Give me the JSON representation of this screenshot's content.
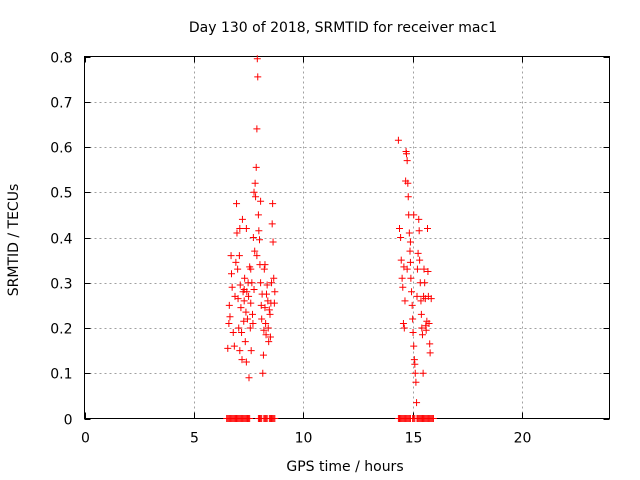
{
  "chart_data": {
    "type": "scatter",
    "title": "Day 130 of 2018, SRMTID for receiver mac1",
    "xlabel": "GPS time / hours",
    "ylabel": "SRMTID / TECUs",
    "xlim": [
      0,
      24
    ],
    "ylim": [
      0,
      0.8
    ],
    "xticks": [
      "0",
      "5",
      "10",
      "15",
      "20"
    ],
    "yticks": [
      "0",
      "0.1",
      "0.2",
      "0.3",
      "0.4",
      "0.5",
      "0.6",
      "0.7",
      "0.8"
    ],
    "grid": true,
    "marker": "+",
    "color": "#ff0000",
    "series": [
      {
        "name": "SRMTID",
        "points": [
          [
            6.55,
            0.155
          ],
          [
            6.6,
            0.21
          ],
          [
            6.62,
            0.25
          ],
          [
            6.65,
            0.225
          ],
          [
            6.7,
            0.36
          ],
          [
            6.72,
            0.32
          ],
          [
            6.75,
            0.29
          ],
          [
            6.8,
            0.19
          ],
          [
            6.85,
            0.16
          ],
          [
            6.88,
            0.27
          ],
          [
            6.92,
            0.345
          ],
          [
            6.95,
            0.475
          ],
          [
            6.97,
            0.41
          ],
          [
            7.0,
            0.33
          ],
          [
            7.02,
            0.265
          ],
          [
            7.05,
            0.2
          ],
          [
            7.08,
            0.36
          ],
          [
            7.1,
            0.15
          ],
          [
            7.12,
            0.295
          ],
          [
            7.15,
            0.245
          ],
          [
            7.18,
            0.19
          ],
          [
            7.2,
            0.13
          ],
          [
            7.22,
            0.44
          ],
          [
            7.25,
            0.28
          ],
          [
            7.28,
            0.215
          ],
          [
            7.3,
            0.26
          ],
          [
            7.32,
            0.31
          ],
          [
            7.35,
            0.17
          ],
          [
            7.38,
            0.235
          ],
          [
            7.4,
            0.125
          ],
          [
            7.42,
            0.28
          ],
          [
            7.45,
            0.22
          ],
          [
            7.48,
            0.3
          ],
          [
            7.5,
            0.27
          ],
          [
            7.52,
            0.09
          ],
          [
            7.55,
            0.335
          ],
          [
            7.58,
            0.2
          ],
          [
            7.6,
            0.255
          ],
          [
            7.62,
            0.15
          ],
          [
            7.65,
            0.3
          ],
          [
            7.68,
            0.23
          ],
          [
            7.7,
            0.21
          ],
          [
            7.72,
            0.4
          ],
          [
            7.75,
            0.285
          ],
          [
            7.78,
            0.37
          ],
          [
            7.8,
            0.52
          ],
          [
            7.82,
            0.49
          ],
          [
            7.85,
            0.555
          ],
          [
            7.88,
            0.64
          ],
          [
            7.9,
            0.795
          ],
          [
            7.92,
            0.755
          ],
          [
            7.95,
            0.45
          ],
          [
            7.97,
            0.415
          ],
          [
            8.0,
            0.395
          ],
          [
            8.02,
            0.34
          ],
          [
            8.05,
            0.3
          ],
          [
            8.08,
            0.25
          ],
          [
            8.1,
            0.22
          ],
          [
            8.12,
            0.275
          ],
          [
            8.15,
            0.1
          ],
          [
            8.18,
            0.14
          ],
          [
            8.2,
            0.195
          ],
          [
            8.22,
            0.33
          ],
          [
            8.25,
            0.245
          ],
          [
            8.28,
            0.21
          ],
          [
            8.3,
            0.185
          ],
          [
            8.32,
            0.275
          ],
          [
            8.35,
            0.295
          ],
          [
            8.38,
            0.26
          ],
          [
            8.4,
            0.2
          ],
          [
            8.42,
            0.17
          ],
          [
            8.45,
            0.24
          ],
          [
            8.48,
            0.23
          ],
          [
            8.5,
            0.18
          ],
          [
            8.52,
            0.255
          ],
          [
            8.55,
            0.3
          ],
          [
            8.58,
            0.43
          ],
          [
            8.6,
            0.475
          ],
          [
            8.62,
            0.39
          ],
          [
            8.65,
            0.31
          ],
          [
            8.68,
            0.255
          ],
          [
            8.7,
            0.28
          ],
          [
            7.4,
            0.42
          ],
          [
            7.6,
            0.33
          ],
          [
            7.75,
            0.5
          ],
          [
            8.05,
            0.48
          ],
          [
            8.25,
            0.34
          ],
          [
            7.88,
            0.36
          ],
          [
            7.1,
            0.42
          ],
          [
            7.3,
            0.285
          ],
          [
            14.35,
            0.615
          ],
          [
            14.4,
            0.42
          ],
          [
            14.45,
            0.4
          ],
          [
            14.48,
            0.35
          ],
          [
            14.52,
            0.31
          ],
          [
            14.55,
            0.29
          ],
          [
            14.58,
            0.21
          ],
          [
            14.6,
            0.335
          ],
          [
            14.62,
            0.2
          ],
          [
            14.65,
            0.26
          ],
          [
            14.68,
            0.525
          ],
          [
            14.7,
            0.59
          ],
          [
            14.72,
            0.585
          ],
          [
            14.75,
            0.57
          ],
          [
            14.78,
            0.52
          ],
          [
            14.8,
            0.49
          ],
          [
            14.82,
            0.45
          ],
          [
            14.85,
            0.41
          ],
          [
            14.88,
            0.37
          ],
          [
            14.9,
            0.345
          ],
          [
            14.92,
            0.31
          ],
          [
            14.95,
            0.28
          ],
          [
            14.98,
            0.25
          ],
          [
            15.0,
            0.22
          ],
          [
            15.02,
            0.19
          ],
          [
            15.05,
            0.16
          ],
          [
            15.08,
            0.13
          ],
          [
            15.1,
            0.12
          ],
          [
            15.12,
            0.1
          ],
          [
            15.15,
            0.08
          ],
          [
            15.18,
            0.035
          ],
          [
            15.2,
            0.27
          ],
          [
            15.22,
            0.33
          ],
          [
            15.25,
            0.365
          ],
          [
            15.28,
            0.44
          ],
          [
            15.3,
            0.415
          ],
          [
            15.32,
            0.35
          ],
          [
            15.35,
            0.3
          ],
          [
            15.38,
            0.26
          ],
          [
            15.4,
            0.23
          ],
          [
            15.42,
            0.2
          ],
          [
            15.45,
            0.185
          ],
          [
            15.48,
            0.1
          ],
          [
            15.5,
            0.27
          ],
          [
            15.52,
            0.33
          ],
          [
            15.55,
            0.3
          ],
          [
            15.58,
            0.265
          ],
          [
            15.6,
            0.205
          ],
          [
            15.62,
            0.195
          ],
          [
            15.65,
            0.215
          ],
          [
            15.68,
            0.42
          ],
          [
            15.7,
            0.325
          ],
          [
            15.72,
            0.27
          ],
          [
            15.75,
            0.21
          ],
          [
            15.78,
            0.165
          ],
          [
            15.8,
            0.145
          ],
          [
            15.85,
            0.265
          ],
          [
            14.9,
            0.39
          ],
          [
            15.05,
            0.45
          ],
          [
            14.75,
            0.33
          ]
        ],
        "zero_points_x": [
          6.5,
          6.55,
          6.6,
          6.65,
          6.7,
          6.75,
          6.8,
          6.85,
          6.9,
          6.95,
          7.0,
          7.05,
          7.1,
          7.15,
          7.2,
          7.25,
          7.3,
          7.35,
          7.4,
          7.45,
          7.5,
          7.55,
          7.95,
          8.0,
          8.05,
          8.1,
          8.2,
          8.25,
          8.3,
          8.35,
          8.45,
          8.5,
          8.55,
          8.6,
          8.65,
          8.7,
          14.35,
          14.4,
          14.45,
          14.5,
          14.55,
          14.6,
          14.65,
          14.7,
          14.75,
          14.8,
          14.85,
          14.9,
          15.0,
          15.05,
          15.1,
          15.2,
          15.25,
          15.3,
          15.35,
          15.4,
          15.45,
          15.5,
          15.55,
          15.6,
          15.65,
          15.7,
          15.75,
          15.8,
          15.85,
          15.9,
          15.95
        ]
      }
    ]
  }
}
